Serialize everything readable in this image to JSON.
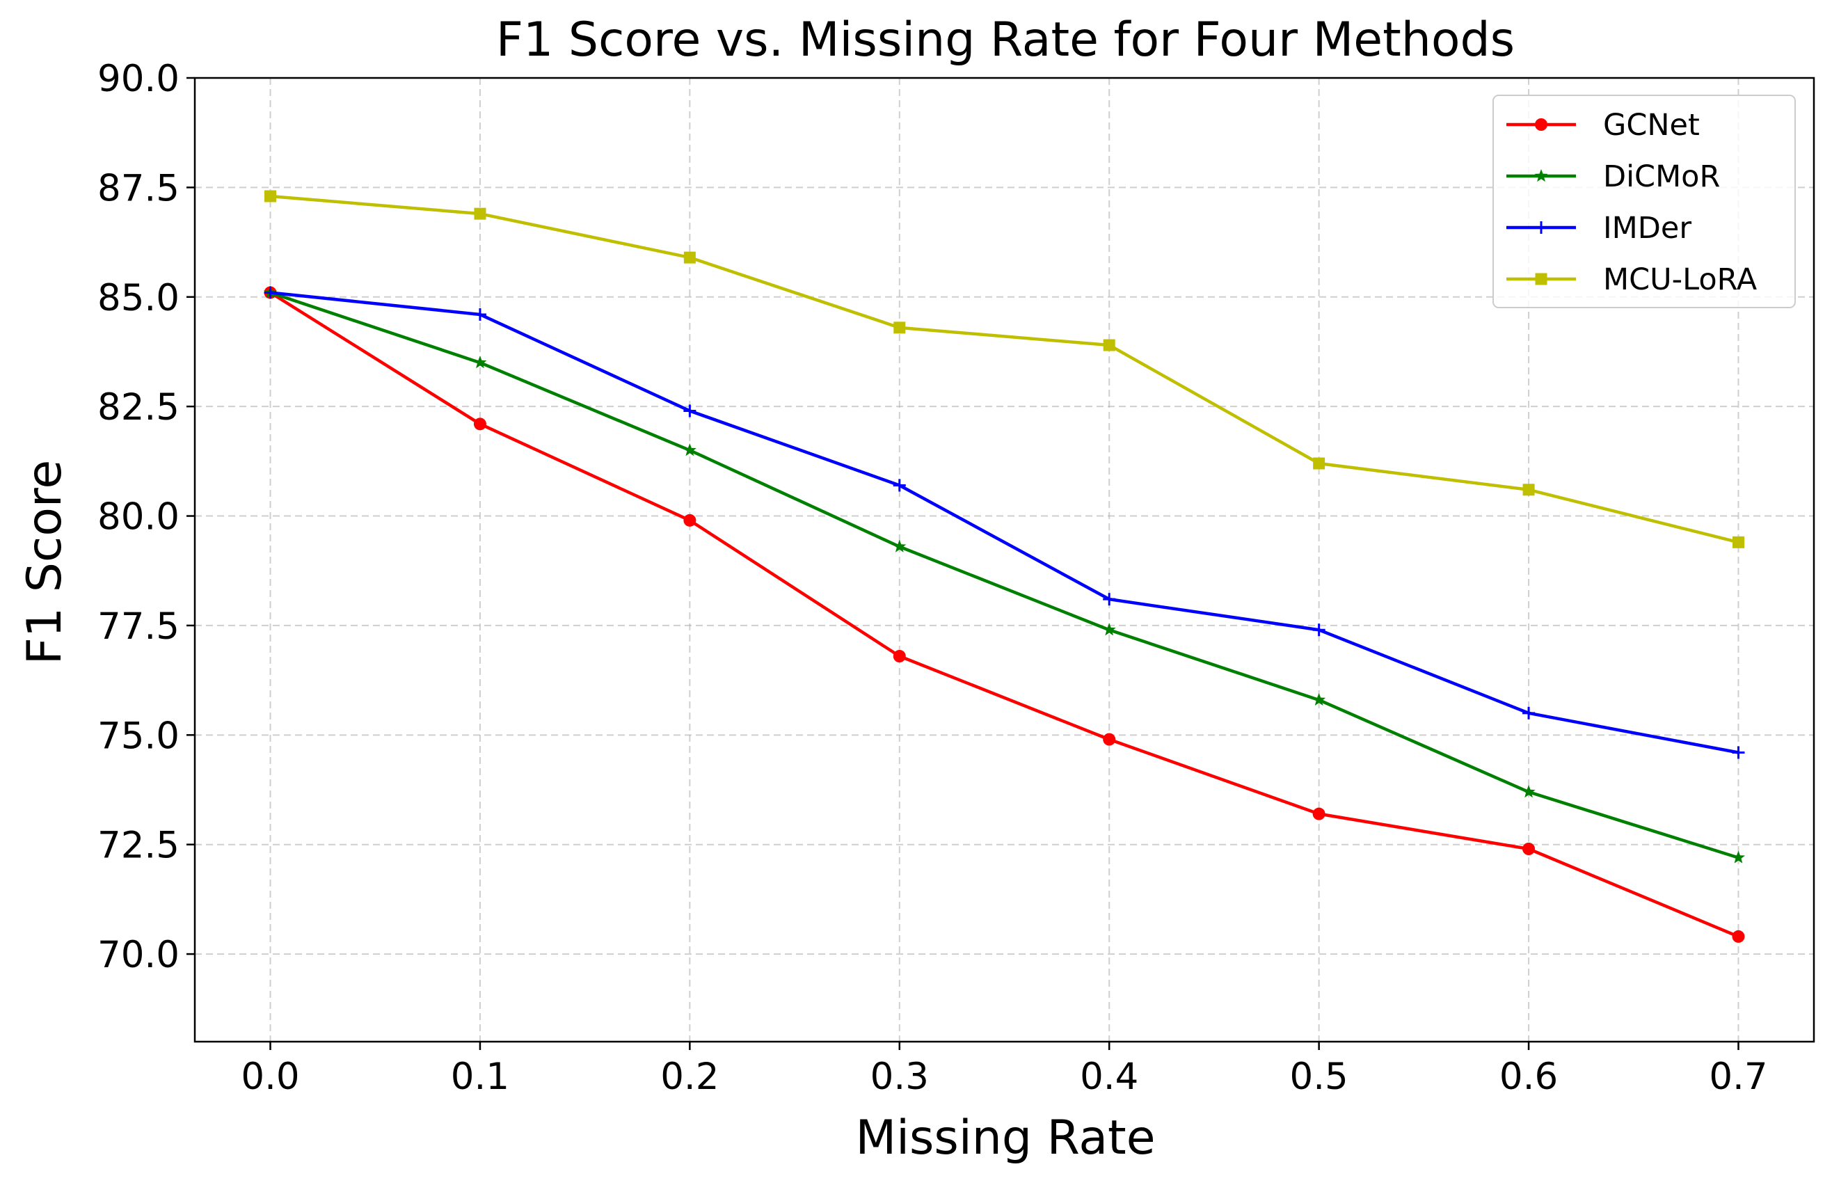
{
  "chart_data": {
    "type": "line",
    "title": "F1 Score vs. Missing Rate for Four Methods",
    "xlabel": "Missing Rate",
    "ylabel": "F1 Score",
    "x": [
      0.0,
      0.1,
      0.2,
      0.3,
      0.4,
      0.5,
      0.6,
      0.7
    ],
    "x_tick_labels": [
      "0.0",
      "0.1",
      "0.2",
      "0.3",
      "0.4",
      "0.5",
      "0.6",
      "0.7"
    ],
    "y_ticks": [
      70.0,
      72.5,
      75.0,
      77.5,
      80.0,
      82.5,
      85.0,
      87.5,
      90.0
    ],
    "y_tick_labels": [
      "70.0",
      "72.5",
      "75.0",
      "77.5",
      "80.0",
      "82.5",
      "85.0",
      "87.5",
      "90.0"
    ],
    "xlim": [
      -0.036,
      0.736
    ],
    "ylim": [
      68.0,
      90.0
    ],
    "grid": true,
    "legend_position": "top-right",
    "series": [
      {
        "name": "GCNet",
        "color": "#ff0000",
        "marker": "circle",
        "values": [
          85.1,
          82.1,
          79.9,
          76.8,
          74.9,
          73.2,
          72.4,
          70.4
        ]
      },
      {
        "name": "DiCMoR",
        "color": "#008000",
        "marker": "star",
        "values": [
          85.1,
          83.5,
          81.5,
          79.3,
          77.4,
          75.8,
          73.7,
          72.2
        ]
      },
      {
        "name": "IMDer",
        "color": "#0000ff",
        "marker": "plus",
        "values": [
          85.1,
          84.6,
          82.4,
          80.7,
          78.1,
          77.4,
          75.5,
          74.6
        ]
      },
      {
        "name": "MCU-LoRA",
        "color": "#bfbf00",
        "marker": "square",
        "values": [
          87.3,
          86.9,
          85.9,
          84.3,
          83.9,
          81.2,
          80.6,
          79.4
        ]
      }
    ]
  }
}
